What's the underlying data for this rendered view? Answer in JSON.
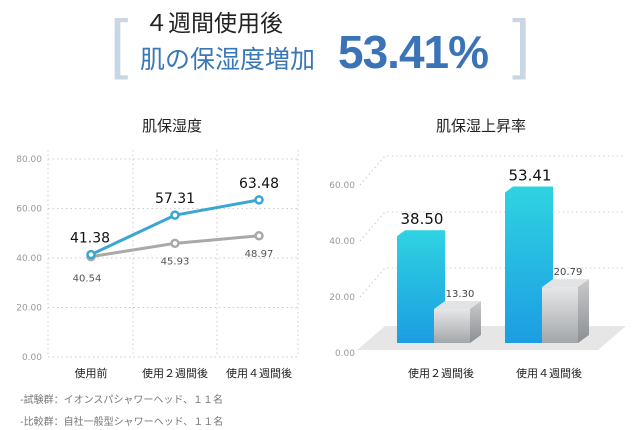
{
  "header": {
    "line1": "４週間使用後",
    "line2": "肌の保湿度増加",
    "value": "53.41%",
    "bracket_open": "[",
    "bracket_close": "]",
    "accent_color": "#3b74b6"
  },
  "chart_data": [
    {
      "type": "line",
      "title": "肌保湿度",
      "categories": [
        "使用前",
        "使用２週間後",
        "使用４週間後"
      ],
      "ylim": [
        0,
        80
      ],
      "yticks": [
        "0.00",
        "20.00",
        "40.00",
        "60.00",
        "80.00"
      ],
      "grid": true,
      "series": [
        {
          "values": [
            41.38,
            57.31,
            63.48
          ],
          "labels": [
            "41.38",
            "57.31",
            "63.48"
          ],
          "color": "#3aa6d2"
        },
        {
          "values": [
            40.54,
            45.93,
            48.97
          ],
          "labels": [
            "40.54",
            "45.93",
            "48.97"
          ],
          "color": "#a9a9a9"
        }
      ]
    },
    {
      "type": "bar",
      "title": "肌保湿上昇率",
      "categories": [
        "使用２週間後",
        "使用４週間後"
      ],
      "ylim": [
        0,
        60
      ],
      "yticks": [
        "0.00",
        "20.00",
        "40.00",
        "60.00"
      ],
      "grid": true,
      "series": [
        {
          "values": [
            38.5,
            53.41
          ],
          "labels": [
            "38.50",
            "53.41"
          ],
          "color": "#22aee3"
        },
        {
          "values": [
            13.3,
            20.79
          ],
          "labels": [
            "13.30",
            "20.79"
          ],
          "color": "#b5b8bb"
        }
      ]
    }
  ],
  "footnotes": [
    "-試験群：イオンスパシャワーヘッド、１１名",
    "-比較群：自社一般型シャワーヘッド、１１名"
  ]
}
